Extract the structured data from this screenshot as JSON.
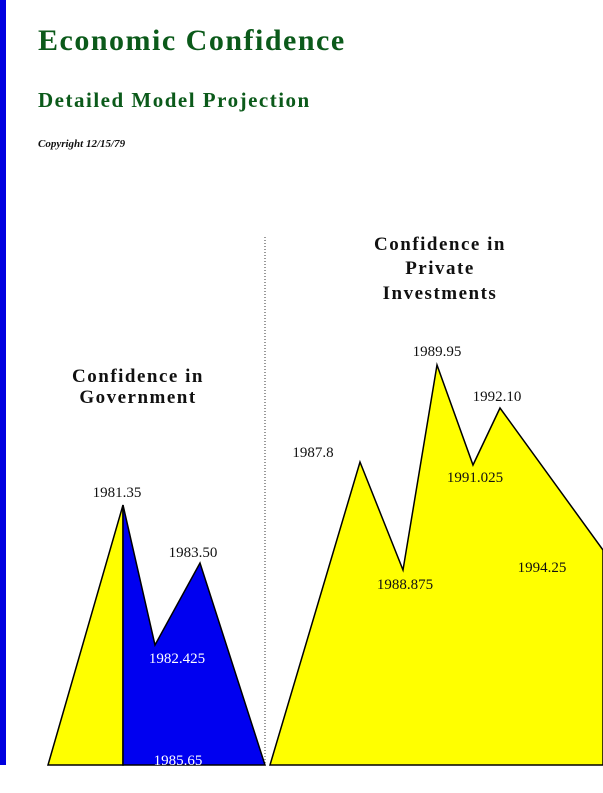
{
  "header": {
    "title": "Economic Confidence",
    "subtitle": "Detailed Model Projection",
    "copyright": "Copyright 12/15/79"
  },
  "panels": [
    {
      "heading": [
        "Confidence in",
        "Government"
      ],
      "labels": [
        "1981.35",
        "1983.50",
        "1982.425",
        "1985.65"
      ]
    },
    {
      "heading": [
        "Confidence in",
        "Private",
        "Investments"
      ],
      "labels": [
        "1987.8",
        "1989.95",
        "1992.10",
        "1991.025",
        "1988.875",
        "1994.25"
      ]
    }
  ]
}
